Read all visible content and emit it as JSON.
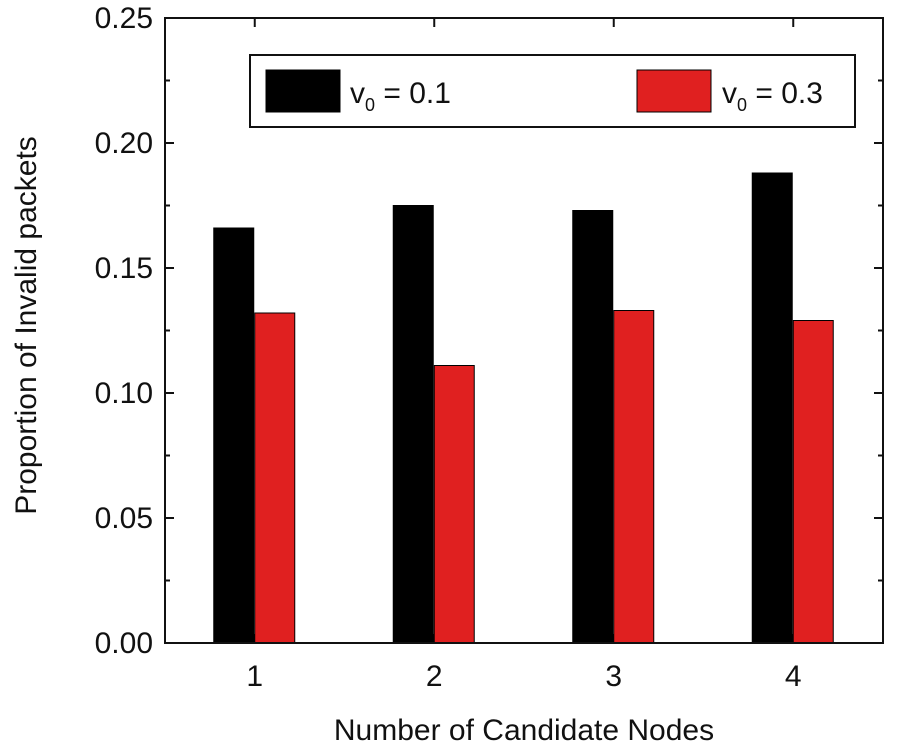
{
  "chart_data": {
    "type": "bar",
    "xlabel": "Number of Candidate Nodes",
    "ylabel": "Proportion of Invalid packets",
    "categories": [
      "1",
      "2",
      "3",
      "4"
    ],
    "ylim": [
      0,
      0.25
    ],
    "yticks": [
      "0.00",
      "0.05",
      "0.10",
      "0.15",
      "0.20",
      "0.25"
    ],
    "series": [
      {
        "name_prefix": "v",
        "name_sub": "0",
        "name_suffix": " = 0.1",
        "color": "#000000",
        "values": [
          0.166,
          0.175,
          0.173,
          0.188
        ]
      },
      {
        "name_prefix": "v",
        "name_sub": "0",
        "name_suffix": " = 0.3",
        "color": "#e02020",
        "values": [
          0.132,
          0.111,
          0.133,
          0.129
        ]
      }
    ],
    "legend_position": "top",
    "grid": false
  }
}
